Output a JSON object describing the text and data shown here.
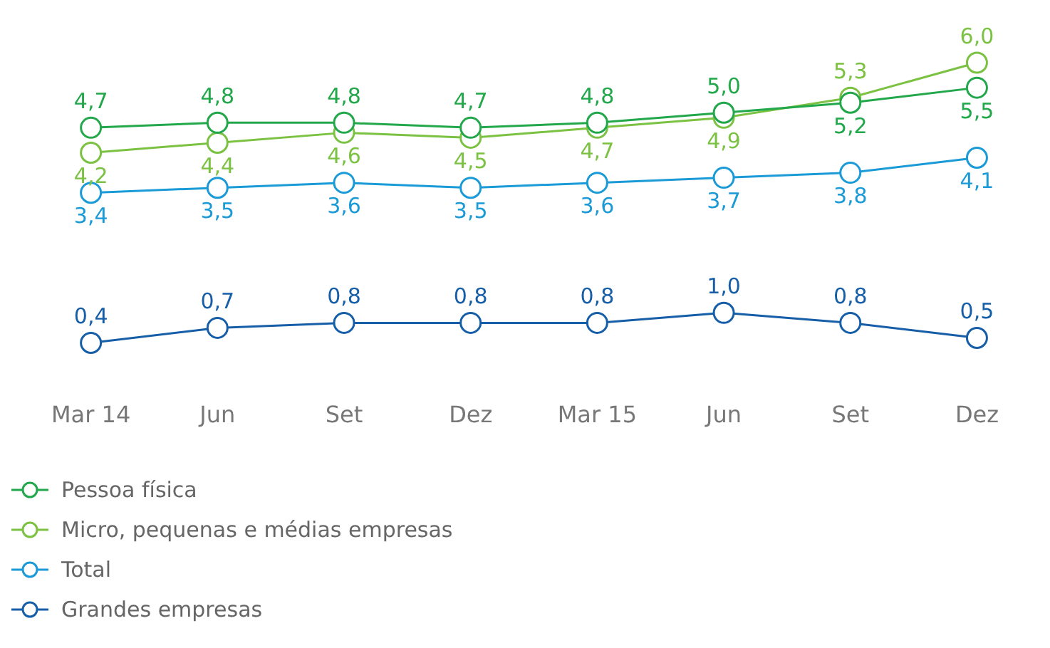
{
  "chart_data": {
    "type": "line",
    "categories": [
      "Mar 14",
      "Jun",
      "Set",
      "Dez",
      "Mar 15",
      "Jun",
      "Set",
      "Dez"
    ],
    "series": [
      {
        "name": "Pessoa física",
        "color": "#22a84a",
        "values": [
          4.7,
          4.8,
          4.8,
          4.7,
          4.8,
          5.0,
          5.2,
          5.5
        ],
        "value_labels": [
          "4,7",
          "4,8",
          "4,8",
          "4,7",
          "4,8",
          "5,0",
          "5,2",
          "5,5"
        ]
      },
      {
        "name": "Micro, pequenas e médias empresas",
        "color": "#7cc242",
        "values": [
          4.2,
          4.4,
          4.6,
          4.5,
          4.7,
          4.9,
          5.3,
          6.0
        ],
        "value_labels": [
          "4,2",
          "4,4",
          "4,6",
          "4,5",
          "4,7",
          "4,9",
          "5,3",
          "6,0"
        ]
      },
      {
        "name": "Total",
        "color": "#1a9ad6",
        "values": [
          3.4,
          3.5,
          3.6,
          3.5,
          3.6,
          3.7,
          3.8,
          4.1
        ],
        "value_labels": [
          "3,4",
          "3,5",
          "3,6",
          "3,5",
          "3,6",
          "3,7",
          "3,8",
          "4,1"
        ]
      },
      {
        "name": "Grandes empresas",
        "color": "#165fa8",
        "values": [
          0.4,
          0.7,
          0.8,
          0.8,
          0.8,
          1.0,
          0.8,
          0.5
        ],
        "value_labels": [
          "0,4",
          "0,7",
          "0,8",
          "0,8",
          "0,8",
          "1,0",
          "0,8",
          "0,5"
        ]
      }
    ],
    "marker": "circle",
    "line_style": "solid",
    "grid": false,
    "legend": "bottom"
  }
}
